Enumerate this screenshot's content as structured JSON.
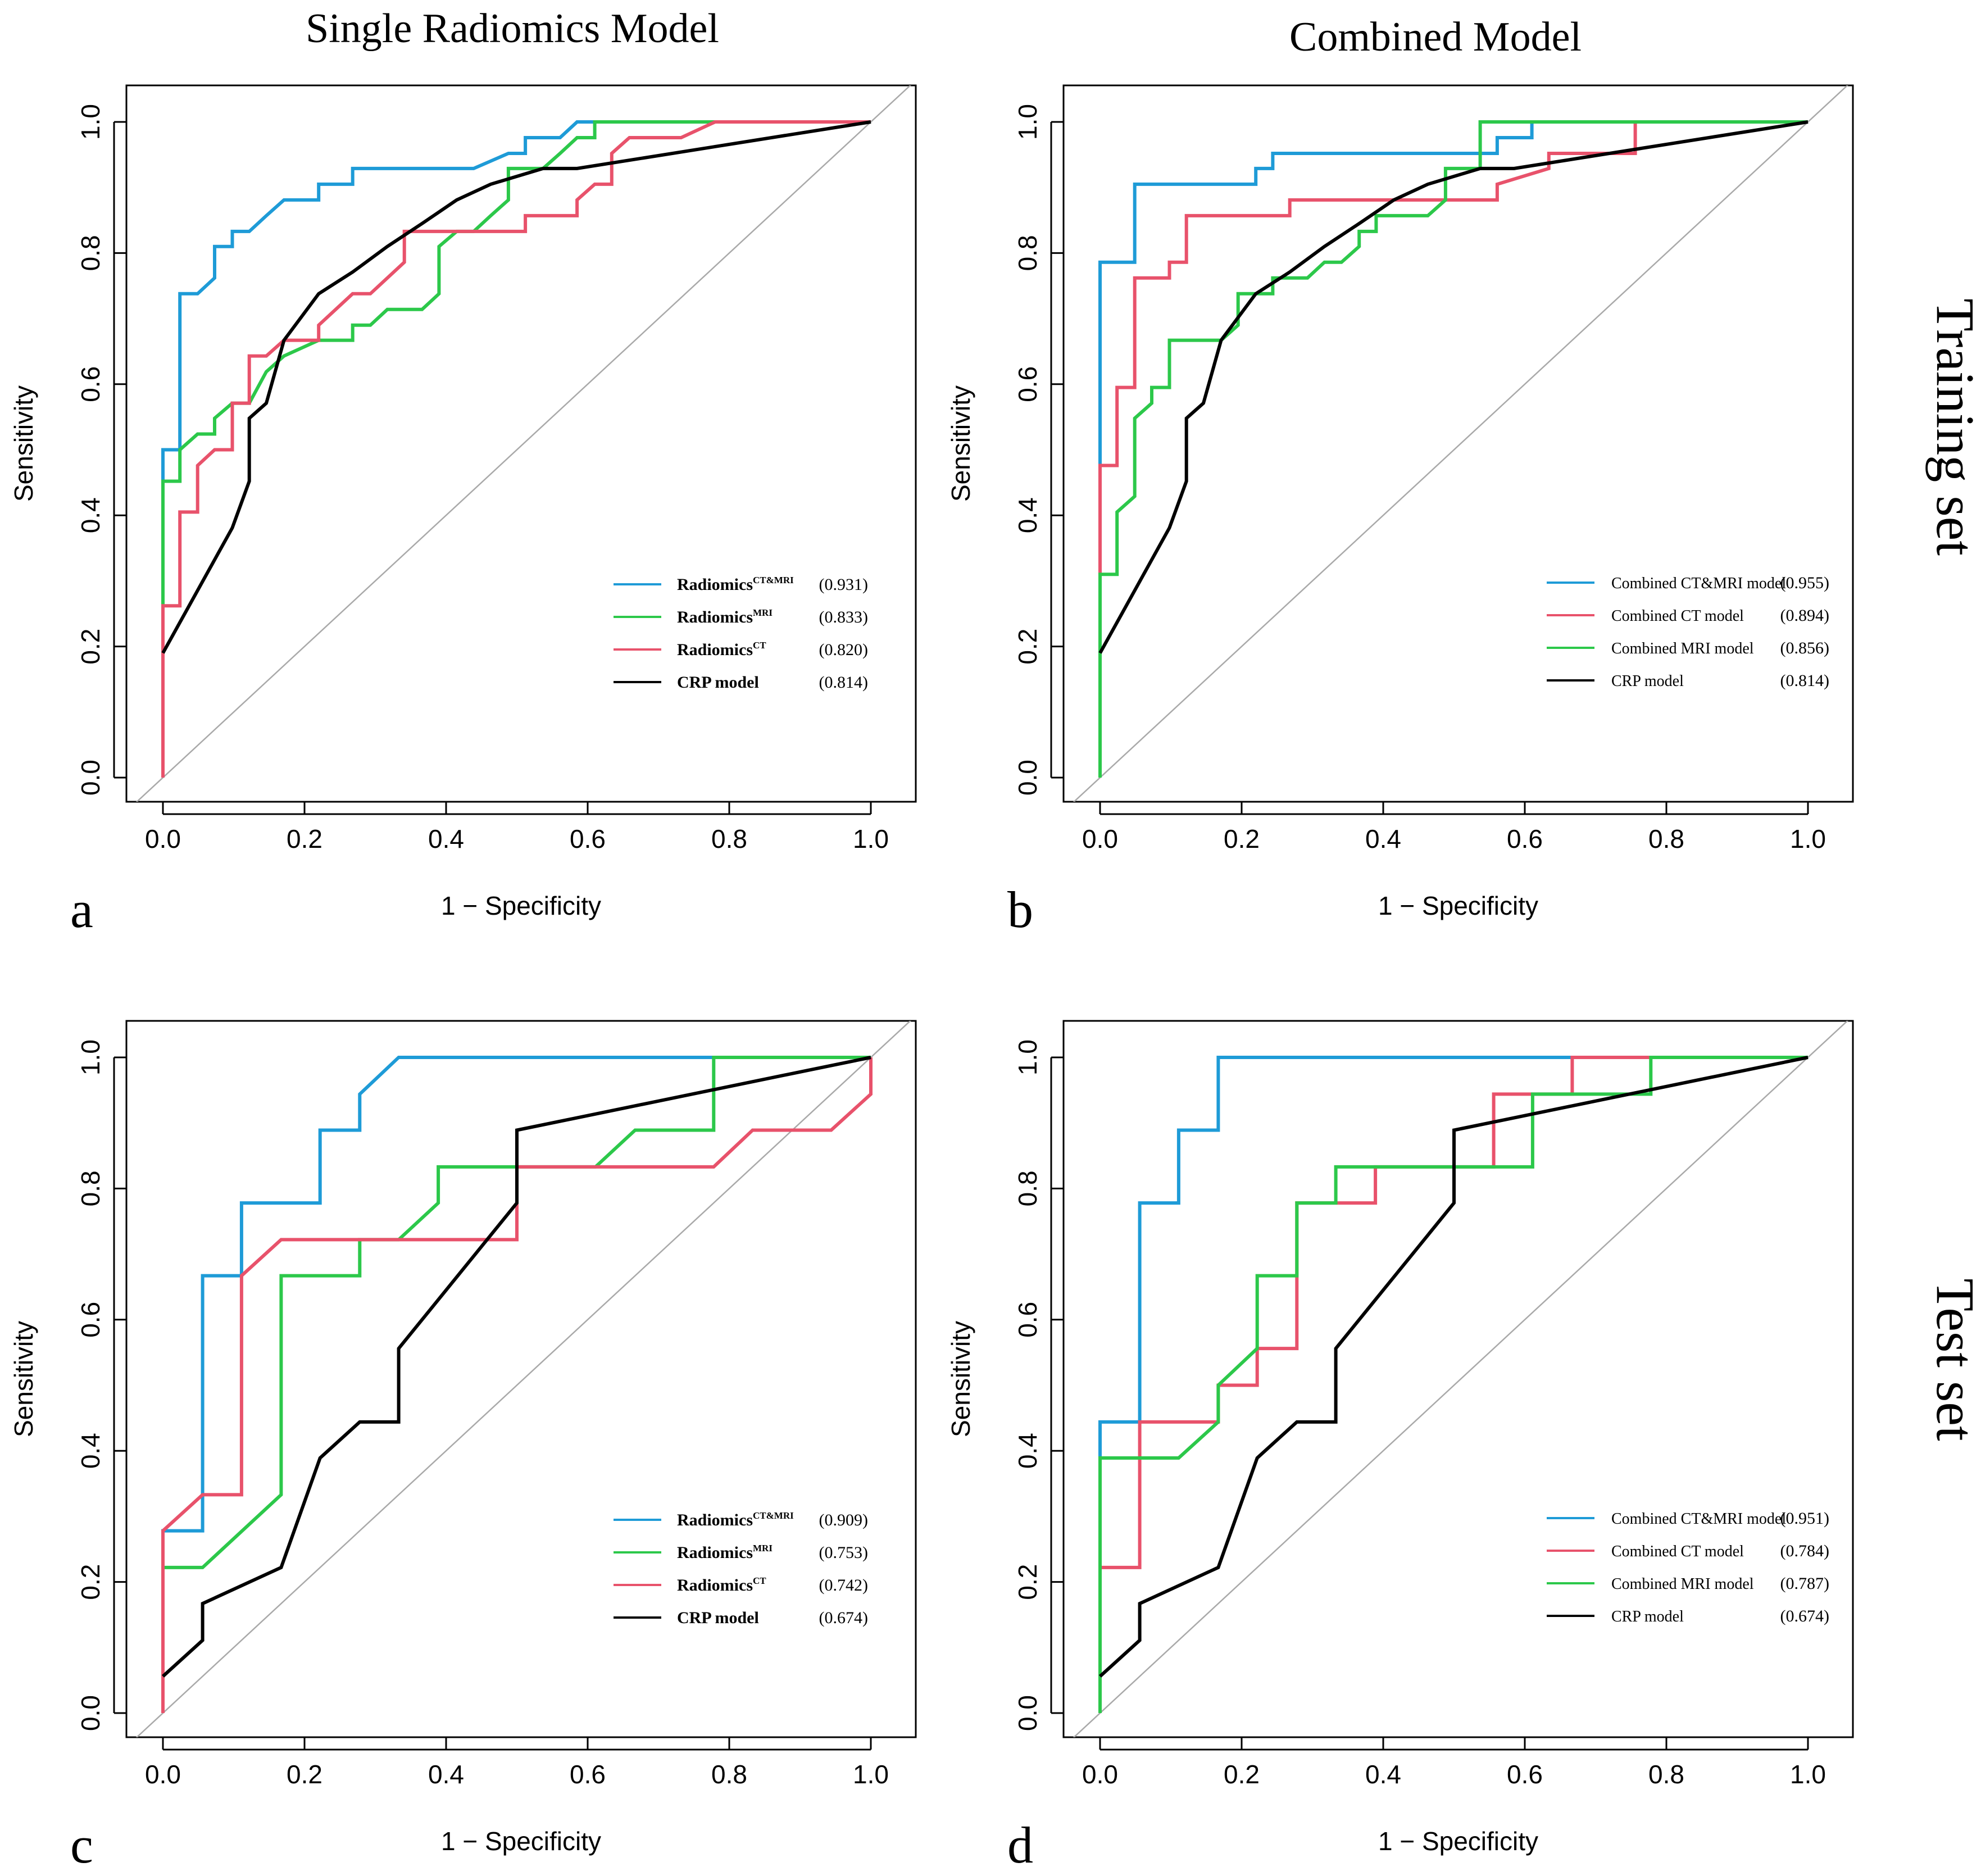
{
  "column_titles": [
    "Single Radiomics Model",
    "Combined Model"
  ],
  "row_titles": [
    "Training set",
    "Test set"
  ],
  "colors": {
    "blue": "#1E9BD7",
    "green": "#2CC84A",
    "red": "#E8526B",
    "black": "#000000",
    "diagonal": "#A9A9A9"
  },
  "chart_data": [
    {
      "type": "line",
      "panel": "a",
      "title": "",
      "xlabel": "1 − Specificity",
      "ylabel": "Sensitivity",
      "xlim": [
        0,
        1
      ],
      "ylim": [
        0,
        1
      ],
      "xticks": [
        "0.0",
        "0.2",
        "0.4",
        "0.6",
        "0.8",
        "1.0"
      ],
      "yticks": [
        "0.0",
        "0.2",
        "0.4",
        "0.6",
        "0.8",
        "1.0"
      ],
      "legend_position": "bottom-right",
      "series": [
        {
          "name": "Radiomics",
          "sup": "CT&MRI",
          "auc": "(0.931)",
          "color": "blue",
          "x": [
            0,
            0,
            0.024,
            0.024,
            0.049,
            0.073,
            0.073,
            0.098,
            0.098,
            0.122,
            0.146,
            0.146,
            0.171,
            0.171,
            0.22,
            0.22,
            0.268,
            0.268,
            0.439,
            0.488,
            0.512,
            0.512,
            0.561,
            0.585,
            0.585,
            1
          ],
          "y": [
            0,
            0.5,
            0.5,
            0.738,
            0.738,
            0.762,
            0.81,
            0.81,
            0.833,
            0.833,
            0.857,
            0.857,
            0.881,
            0.881,
            0.881,
            0.905,
            0.905,
            0.929,
            0.929,
            0.952,
            0.952,
            0.976,
            0.976,
            1,
            1,
            1
          ]
        },
        {
          "name": "Radiomics",
          "sup": "MRI",
          "auc": "(0.833)",
          "color": "green",
          "x": [
            0,
            0,
            0.024,
            0.024,
            0.049,
            0.073,
            0.073,
            0.098,
            0.122,
            0.146,
            0.171,
            0.22,
            0.268,
            0.268,
            0.293,
            0.317,
            0.366,
            0.39,
            0.39,
            0.415,
            0.439,
            0.463,
            0.488,
            0.488,
            0.512,
            0.537,
            0.561,
            0.585,
            0.61,
            0.61,
            1
          ],
          "y": [
            0,
            0.452,
            0.452,
            0.5,
            0.524,
            0.524,
            0.548,
            0.571,
            0.571,
            0.619,
            0.643,
            0.667,
            0.667,
            0.69,
            0.69,
            0.714,
            0.714,
            0.738,
            0.81,
            0.833,
            0.833,
            0.857,
            0.881,
            0.929,
            0.929,
            0.929,
            0.952,
            0.976,
            0.976,
            1,
            1
          ]
        },
        {
          "name": "Radiomics",
          "sup": "CT",
          "auc": "(0.820)",
          "color": "red",
          "x": [
            0,
            0,
            0.024,
            0.024,
            0.049,
            0.049,
            0.073,
            0.073,
            0.098,
            0.098,
            0.122,
            0.122,
            0.146,
            0.171,
            0.22,
            0.22,
            0.268,
            0.293,
            0.341,
            0.341,
            0.512,
            0.512,
            0.585,
            0.585,
            0.61,
            0.634,
            0.634,
            0.659,
            0.732,
            0.78,
            1
          ],
          "y": [
            0,
            0.262,
            0.262,
            0.405,
            0.405,
            0.476,
            0.5,
            0.5,
            0.5,
            0.571,
            0.571,
            0.643,
            0.643,
            0.667,
            0.667,
            0.69,
            0.738,
            0.738,
            0.786,
            0.833,
            0.833,
            0.857,
            0.857,
            0.881,
            0.905,
            0.905,
            0.952,
            0.976,
            0.976,
            1,
            1
          ]
        },
        {
          "name": "CRP model",
          "sup": "",
          "auc": "(0.814)",
          "color": "black",
          "x": [
            0,
            0.098,
            0.122,
            0.122,
            0.146,
            0.171,
            0.22,
            0.268,
            0.317,
            0.366,
            0.415,
            0.463,
            0.537,
            0.585,
            1
          ],
          "y": [
            0.19,
            0.381,
            0.452,
            0.548,
            0.571,
            0.667,
            0.738,
            0.771,
            0.81,
            0.845,
            0.881,
            0.905,
            0.929,
            0.929,
            1
          ]
        }
      ]
    },
    {
      "type": "line",
      "panel": "b",
      "title": "",
      "xlabel": "1 − Specificity",
      "ylabel": "Sensitivity",
      "xlim": [
        0,
        1
      ],
      "ylim": [
        0,
        1
      ],
      "xticks": [
        "0.0",
        "0.2",
        "0.4",
        "0.6",
        "0.8",
        "1.0"
      ],
      "yticks": [
        "0.0",
        "0.2",
        "0.4",
        "0.6",
        "0.8",
        "1.0"
      ],
      "legend_position": "bottom-right",
      "series": [
        {
          "name": "Combined CT&MRI model",
          "sup": "",
          "auc": "(0.955)",
          "color": "blue",
          "x": [
            0,
            0,
            0.049,
            0.049,
            0.22,
            0.22,
            0.244,
            0.244,
            0.561,
            0.561,
            0.61,
            0.61,
            1
          ],
          "y": [
            0,
            0.786,
            0.786,
            0.905,
            0.905,
            0.929,
            0.929,
            0.952,
            0.952,
            0.976,
            0.976,
            1,
            1
          ]
        },
        {
          "name": "Combined CT model",
          "sup": "",
          "auc": "(0.894)",
          "color": "red",
          "x": [
            0,
            0,
            0.024,
            0.024,
            0.049,
            0.049,
            0.098,
            0.098,
            0.122,
            0.122,
            0.268,
            0.268,
            0.537,
            0.561,
            0.561,
            0.634,
            0.634,
            0.756,
            0.756,
            0.756
          ],
          "y": [
            0,
            0.476,
            0.476,
            0.595,
            0.595,
            0.762,
            0.762,
            0.786,
            0.786,
            0.857,
            0.857,
            0.881,
            0.881,
            0.881,
            0.905,
            0.929,
            0.952,
            0.952,
            1,
            1
          ]
        },
        {
          "name": "Combined MRI model",
          "sup": "",
          "auc": "(0.856)",
          "color": "green",
          "x": [
            0,
            0,
            0.024,
            0.024,
            0.049,
            0.049,
            0.073,
            0.073,
            0.098,
            0.098,
            0.171,
            0.195,
            0.195,
            0.244,
            0.244,
            0.293,
            0.317,
            0.341,
            0.366,
            0.366,
            0.39,
            0.39,
            0.463,
            0.488,
            0.488,
            0.537,
            0.537,
            0.61,
            1
          ],
          "y": [
            0,
            0.31,
            0.31,
            0.405,
            0.429,
            0.548,
            0.571,
            0.595,
            0.595,
            0.667,
            0.667,
            0.69,
            0.738,
            0.738,
            0.762,
            0.762,
            0.786,
            0.786,
            0.81,
            0.833,
            0.833,
            0.857,
            0.857,
            0.881,
            0.929,
            0.929,
            1,
            1,
            1
          ]
        },
        {
          "name": "CRP model",
          "sup": "",
          "auc": "(0.814)",
          "color": "black",
          "x": [
            0,
            0.098,
            0.122,
            0.122,
            0.146,
            0.171,
            0.22,
            0.268,
            0.317,
            0.366,
            0.415,
            0.463,
            0.537,
            0.585,
            1
          ],
          "y": [
            0.19,
            0.381,
            0.452,
            0.548,
            0.571,
            0.667,
            0.738,
            0.771,
            0.81,
            0.845,
            0.881,
            0.905,
            0.929,
            0.929,
            1
          ]
        }
      ]
    },
    {
      "type": "line",
      "panel": "c",
      "title": "",
      "xlabel": "1 − Specificity",
      "ylabel": "Sensitivity",
      "xlim": [
        0,
        1
      ],
      "ylim": [
        0,
        1
      ],
      "xticks": [
        "0.0",
        "0.2",
        "0.4",
        "0.6",
        "0.8",
        "1.0"
      ],
      "yticks": [
        "0.0",
        "0.2",
        "0.4",
        "0.6",
        "0.8",
        "1.0"
      ],
      "legend_position": "bottom-right",
      "series": [
        {
          "name": "Radiomics",
          "sup": "CT&MRI",
          "auc": "(0.909)",
          "color": "blue",
          "x": [
            0,
            0,
            0.056,
            0.056,
            0.111,
            0.111,
            0.222,
            0.222,
            0.278,
            0.278,
            0.333,
            1
          ],
          "y": [
            0,
            0.278,
            0.278,
            0.667,
            0.667,
            0.778,
            0.778,
            0.889,
            0.889,
            0.944,
            1,
            1
          ]
        },
        {
          "name": "Radiomics",
          "sup": "MRI",
          "auc": "(0.753)",
          "color": "green",
          "x": [
            0,
            0,
            0.056,
            0.167,
            0.167,
            0.278,
            0.278,
            0.333,
            0.389,
            0.389,
            0.611,
            0.667,
            0.778,
            0.778,
            1
          ],
          "y": [
            0,
            0.222,
            0.222,
            0.333,
            0.667,
            0.667,
            0.722,
            0.722,
            0.778,
            0.833,
            0.833,
            0.889,
            0.889,
            1,
            1
          ]
        },
        {
          "name": "Radiomics",
          "sup": "CT",
          "auc": "(0.742)",
          "color": "red",
          "x": [
            0,
            0,
            0.056,
            0.111,
            0.111,
            0.167,
            0.5,
            0.5,
            0.778,
            0.833,
            0.944,
            1,
            1
          ],
          "y": [
            0,
            0.278,
            0.333,
            0.333,
            0.667,
            0.722,
            0.722,
            0.833,
            0.833,
            0.889,
            0.889,
            0.944,
            1
          ]
        },
        {
          "name": "CRP model",
          "sup": "",
          "auc": "(0.674)",
          "color": "black",
          "x": [
            0,
            0.056,
            0.056,
            0.167,
            0.222,
            0.278,
            0.333,
            0.333,
            0.5,
            0.5,
            1
          ],
          "y": [
            0.056,
            0.111,
            0.167,
            0.222,
            0.389,
            0.444,
            0.444,
            0.556,
            0.778,
            0.889,
            1
          ]
        }
      ]
    },
    {
      "type": "line",
      "panel": "d",
      "title": "",
      "xlabel": "1 − Specificity",
      "ylabel": "Sensitivity",
      "xlim": [
        0,
        1
      ],
      "ylim": [
        0,
        1
      ],
      "xticks": [
        "0.0",
        "0.2",
        "0.4",
        "0.6",
        "0.8",
        "1.0"
      ],
      "yticks": [
        "0.0",
        "0.2",
        "0.4",
        "0.6",
        "0.8",
        "1.0"
      ],
      "legend_position": "bottom-right",
      "series": [
        {
          "name": "Combined CT&MRI model",
          "sup": "",
          "auc": "(0.951)",
          "color": "blue",
          "x": [
            0,
            0,
            0.056,
            0.056,
            0.111,
            0.111,
            0.167,
            0.167,
            1
          ],
          "y": [
            0,
            0.444,
            0.444,
            0.778,
            0.778,
            0.889,
            0.889,
            1,
            1
          ]
        },
        {
          "name": "Combined CT model",
          "sup": "",
          "auc": "(0.784)",
          "color": "red",
          "x": [
            0,
            0,
            0.056,
            0.056,
            0.167,
            0.167,
            0.222,
            0.222,
            0.278,
            0.278,
            0.389,
            0.389,
            0.556,
            0.556,
            0.667,
            0.667,
            1
          ],
          "y": [
            0,
            0.222,
            0.222,
            0.444,
            0.444,
            0.5,
            0.5,
            0.556,
            0.556,
            0.778,
            0.778,
            0.833,
            0.833,
            0.944,
            0.944,
            1,
            1
          ]
        },
        {
          "name": "Combined MRI model",
          "sup": "",
          "auc": "(0.787)",
          "color": "green",
          "x": [
            0,
            0,
            0.111,
            0.167,
            0.167,
            0.222,
            0.222,
            0.278,
            0.278,
            0.333,
            0.333,
            0.611,
            0.611,
            0.778,
            0.778,
            1
          ],
          "y": [
            0,
            0.389,
            0.389,
            0.444,
            0.5,
            0.556,
            0.667,
            0.667,
            0.778,
            0.778,
            0.833,
            0.833,
            0.944,
            0.944,
            1,
            1
          ]
        },
        {
          "name": "CRP model",
          "sup": "",
          "auc": "(0.674)",
          "color": "black",
          "x": [
            0,
            0.056,
            0.056,
            0.167,
            0.222,
            0.278,
            0.333,
            0.333,
            0.5,
            0.5,
            1
          ],
          "y": [
            0.056,
            0.111,
            0.167,
            0.222,
            0.389,
            0.444,
            0.444,
            0.556,
            0.778,
            0.889,
            1
          ]
        }
      ]
    }
  ]
}
